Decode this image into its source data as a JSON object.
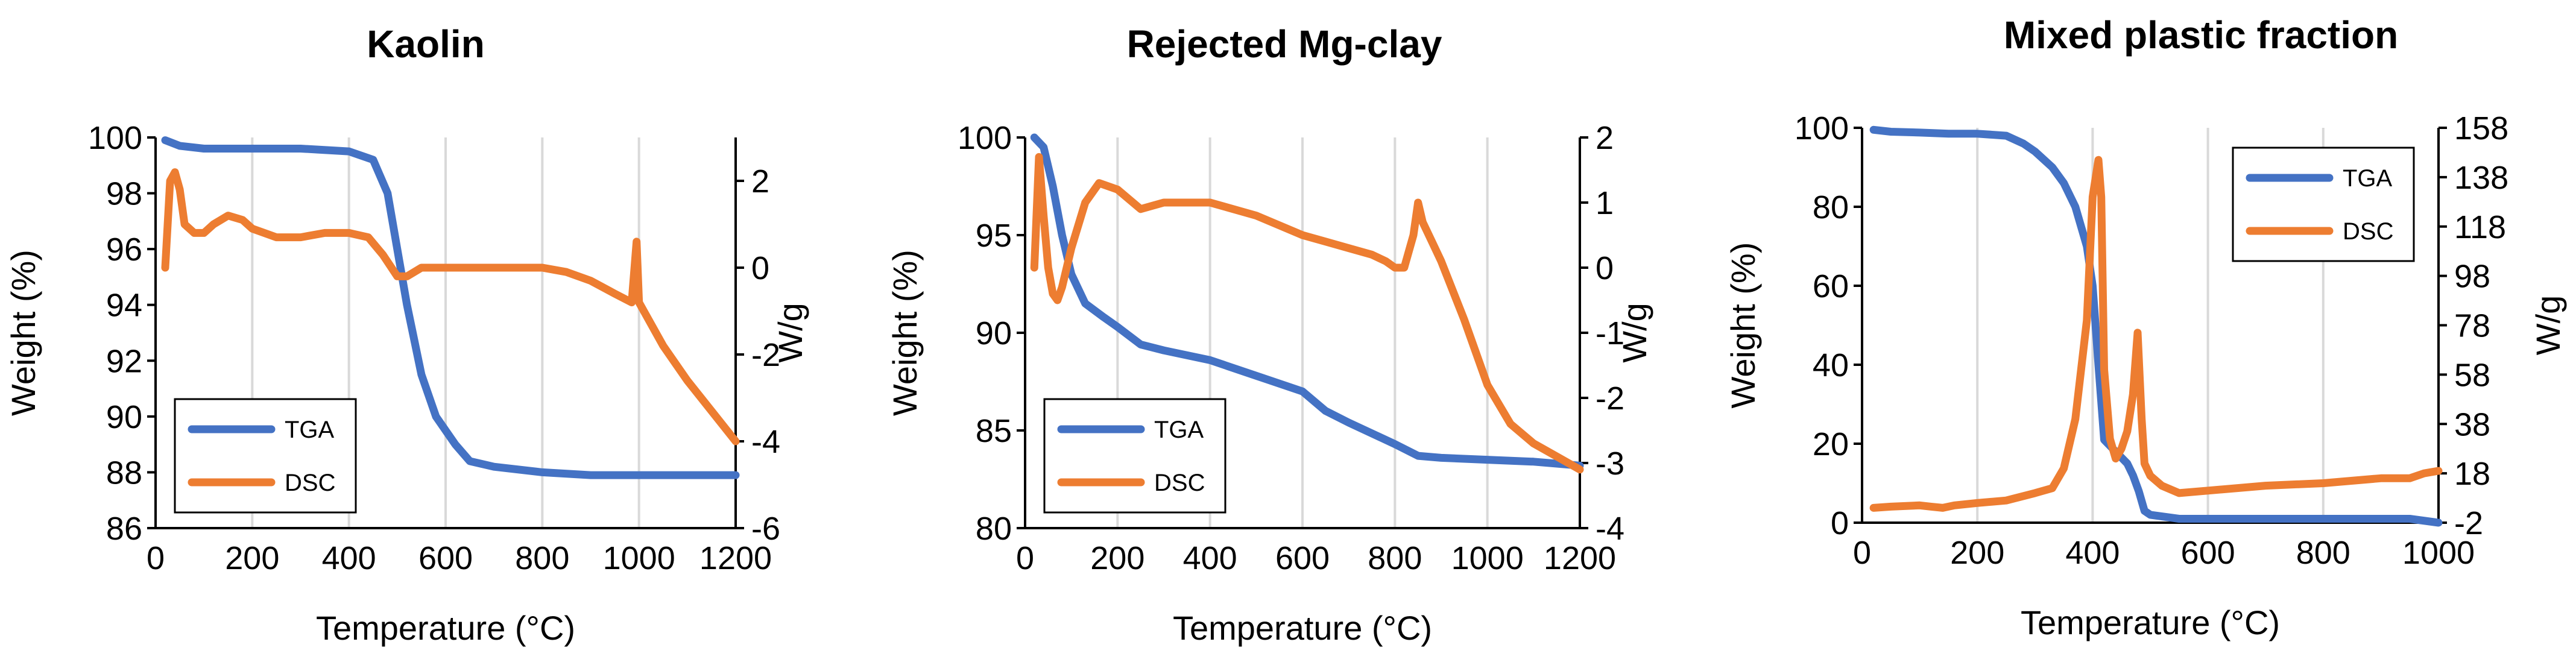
{
  "colors": {
    "tga": "#4472C4",
    "dsc": "#ED7D31",
    "grid": "#d9d9d9"
  },
  "chart_data": [
    {
      "type": "line",
      "title": "Kaolin",
      "xlabel": "Temperature (°C)",
      "ylabel": "Weight (%)",
      "y2label": "W/g",
      "xlim": [
        0,
        1200
      ],
      "xticks": [
        0,
        200,
        400,
        600,
        800,
        1000,
        1200
      ],
      "ylim": [
        86,
        100
      ],
      "yticks": [
        86,
        88,
        90,
        92,
        94,
        96,
        98,
        100
      ],
      "y2lim": [
        -6,
        3
      ],
      "y2ticks": [
        -6,
        -4,
        -2,
        0,
        2
      ],
      "legend": [
        "TGA",
        "DSC"
      ],
      "legend_position": "bottom-left",
      "series": [
        {
          "name": "TGA",
          "axis": "left",
          "x": [
            20,
            50,
            100,
            150,
            200,
            300,
            400,
            450,
            480,
            500,
            520,
            550,
            580,
            620,
            650,
            700,
            800,
            900,
            1000,
            1100,
            1200
          ],
          "y": [
            99.9,
            99.7,
            99.6,
            99.6,
            99.6,
            99.6,
            99.5,
            99.2,
            98.0,
            96.0,
            94.0,
            91.5,
            90.0,
            89.0,
            88.4,
            88.2,
            88.0,
            87.9,
            87.9,
            87.9,
            87.9
          ]
        },
        {
          "name": "DSC",
          "axis": "right",
          "x": [
            20,
            30,
            40,
            50,
            60,
            80,
            100,
            120,
            150,
            180,
            200,
            250,
            300,
            350,
            400,
            440,
            470,
            500,
            520,
            550,
            570,
            600,
            650,
            700,
            800,
            850,
            900,
            950,
            985,
            995,
            1000,
            1010,
            1050,
            1100,
            1150,
            1200
          ],
          "y": [
            0.0,
            2.0,
            2.2,
            1.8,
            1.0,
            0.8,
            0.8,
            1.0,
            1.2,
            1.1,
            0.9,
            0.7,
            0.7,
            0.8,
            0.8,
            0.7,
            0.3,
            -0.2,
            -0.2,
            0.0,
            0.0,
            0.0,
            0.0,
            0.0,
            0.0,
            -0.1,
            -0.3,
            -0.6,
            -0.8,
            0.6,
            -0.8,
            -1.0,
            -1.8,
            -2.6,
            -3.3,
            -4.0
          ]
        }
      ]
    },
    {
      "type": "line",
      "title": "Rejected  Mg-clay",
      "xlabel": "Temperature (°C)",
      "ylabel": "Weight (%)",
      "y2label": "W/g",
      "xlim": [
        0,
        1200
      ],
      "xticks": [
        0,
        200,
        400,
        600,
        800,
        1000,
        1200
      ],
      "ylim": [
        80,
        100
      ],
      "yticks": [
        80,
        85,
        90,
        95,
        100
      ],
      "y2lim": [
        -4,
        2
      ],
      "y2ticks": [
        -4,
        -3,
        -2,
        -1,
        0,
        1,
        2
      ],
      "legend": [
        "TGA",
        "DSC"
      ],
      "legend_position": "bottom-left",
      "series": [
        {
          "name": "TGA",
          "axis": "left",
          "x": [
            20,
            40,
            60,
            80,
            100,
            130,
            170,
            200,
            250,
            300,
            400,
            500,
            600,
            650,
            700,
            800,
            850,
            900,
            1000,
            1100,
            1200
          ],
          "y": [
            100,
            99.5,
            97.5,
            95.0,
            93.0,
            91.5,
            90.8,
            90.3,
            89.4,
            89.1,
            88.6,
            87.8,
            87.0,
            86.0,
            85.4,
            84.3,
            83.7,
            83.6,
            83.5,
            83.4,
            83.2
          ]
        },
        {
          "name": "DSC",
          "axis": "right",
          "x": [
            20,
            30,
            40,
            50,
            60,
            70,
            80,
            100,
            130,
            160,
            200,
            250,
            300,
            350,
            400,
            500,
            600,
            650,
            700,
            750,
            780,
            800,
            820,
            840,
            850,
            860,
            880,
            900,
            950,
            1000,
            1050,
            1100,
            1150,
            1200
          ],
          "y": [
            0.0,
            1.7,
            0.8,
            0.0,
            -0.4,
            -0.5,
            -0.3,
            0.3,
            1.0,
            1.3,
            1.2,
            0.9,
            1.0,
            1.0,
            1.0,
            0.8,
            0.5,
            0.4,
            0.3,
            0.2,
            0.1,
            0.0,
            0.0,
            0.5,
            1.0,
            0.7,
            0.4,
            0.1,
            -0.8,
            -1.8,
            -2.4,
            -2.7,
            -2.9,
            -3.1
          ]
        }
      ]
    },
    {
      "type": "line",
      "title": "Mixed plastic fraction",
      "xlabel": "Temperature (°C)",
      "ylabel": "Weight (%)",
      "y2label": "W/g",
      "xlim": [
        0,
        1000
      ],
      "xticks": [
        0,
        200,
        400,
        600,
        800,
        1000
      ],
      "ylim": [
        0,
        100
      ],
      "yticks": [
        0,
        20,
        40,
        60,
        80,
        100
      ],
      "y2lim": [
        -2,
        158
      ],
      "y2ticks": [
        -2,
        18,
        38,
        58,
        78,
        98,
        118,
        138,
        158
      ],
      "legend": [
        "TGA",
        "DSC"
      ],
      "legend_position": "top-right",
      "series": [
        {
          "name": "TGA",
          "axis": "left",
          "x": [
            20,
            50,
            100,
            150,
            200,
            250,
            280,
            300,
            330,
            350,
            370,
            390,
            400,
            410,
            420,
            440,
            460,
            470,
            480,
            490,
            500,
            550,
            600,
            700,
            800,
            900,
            950,
            1000
          ],
          "y": [
            99.5,
            99,
            98.8,
            98.5,
            98.5,
            98,
            96,
            94,
            90,
            86,
            80,
            70,
            60,
            40,
            21,
            18,
            15,
            12,
            8,
            3,
            2,
            1,
            1,
            1,
            1,
            1,
            1,
            0
          ]
        },
        {
          "name": "DSC",
          "axis": "right",
          "x": [
            20,
            50,
            100,
            120,
            140,
            160,
            200,
            250,
            300,
            330,
            350,
            370,
            390,
            400,
            410,
            415,
            420,
            430,
            440,
            450,
            460,
            470,
            478,
            485,
            490,
            500,
            520,
            550,
            600,
            700,
            800,
            900,
            950,
            975,
            1000
          ],
          "y": [
            4,
            4.5,
            5,
            4.5,
            4,
            5,
            6,
            7,
            10,
            12,
            20,
            40,
            80,
            130,
            145,
            130,
            60,
            32,
            24,
            28,
            35,
            50,
            75,
            40,
            22,
            17,
            13,
            10,
            11,
            13,
            14,
            16,
            16,
            18,
            19
          ]
        }
      ]
    }
  ]
}
